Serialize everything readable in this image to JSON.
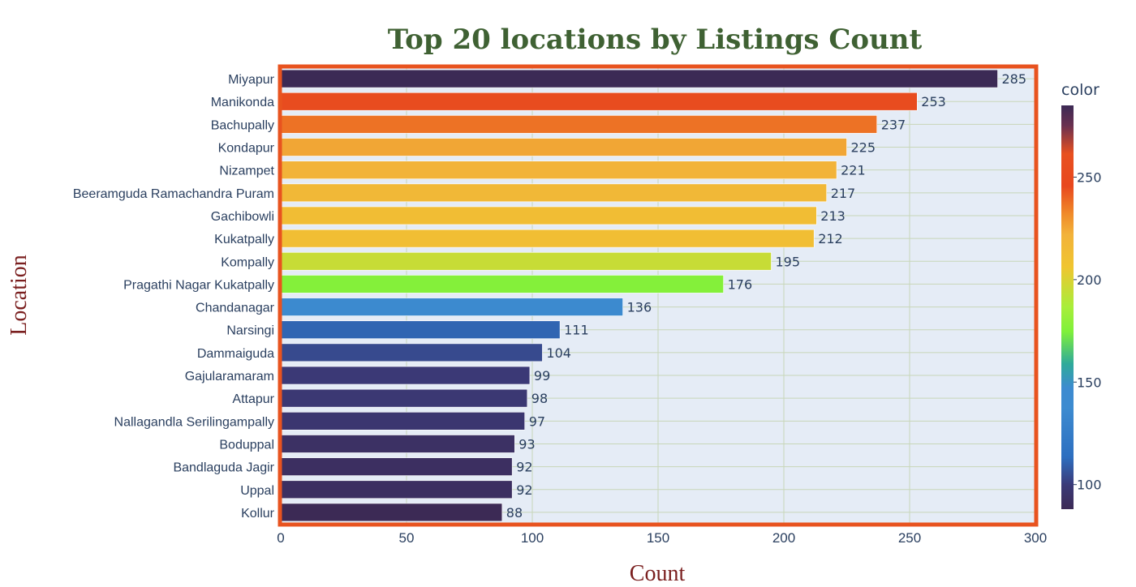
{
  "chart_data": {
    "type": "bar",
    "orientation": "horizontal",
    "title": "Top 20 locations by Listings Count",
    "xlabel": "Count",
    "ylabel": "Location",
    "xlim": [
      0,
      300
    ],
    "xticks": [
      0,
      50,
      100,
      150,
      200,
      250,
      300
    ],
    "grid": true,
    "categories": [
      "Miyapur",
      "Manikonda",
      "Bachupally",
      "Kondapur",
      "Nizampet",
      "Beeramguda Ramachandra Puram",
      "Gachibowli",
      "Kukatpally",
      "Kompally",
      "Pragathi Nagar Kukatpally",
      "Chandanagar",
      "Narsingi",
      "Dammaiguda",
      "Gajularamaram",
      "Attapur",
      "Nallagandla Serilingampally",
      "Boduppal",
      "Bandlaguda Jagir",
      "Uppal",
      "Kollur"
    ],
    "values": [
      285,
      253,
      237,
      225,
      221,
      217,
      213,
      212,
      195,
      176,
      136,
      111,
      104,
      99,
      98,
      97,
      93,
      92,
      92,
      88
    ],
    "data_labels": [
      "285",
      "253",
      "237",
      "225",
      "221",
      "217",
      "213",
      "212",
      "195",
      "176",
      "136",
      "111",
      "104",
      "99",
      "98",
      "97",
      "93",
      "92",
      "92",
      "88"
    ],
    "colorbar": {
      "title": "color",
      "ticks": [
        100,
        150,
        200,
        250
      ],
      "range": [
        88,
        285
      ],
      "colorscale": [
        [
          0.0,
          "#3c2a55"
        ],
        [
          0.06,
          "#3b3a78"
        ],
        [
          0.13,
          "#2d6fc0"
        ],
        [
          0.25,
          "#3d8bd0"
        ],
        [
          0.3,
          "#3d8bd0"
        ],
        [
          0.36,
          "#2faa9a"
        ],
        [
          0.44,
          "#7ff03a"
        ],
        [
          0.5,
          "#a8ee3a"
        ],
        [
          0.6,
          "#f0c530"
        ],
        [
          0.68,
          "#f2b23a"
        ],
        [
          0.73,
          "#f08c2a"
        ],
        [
          0.8,
          "#e8481e"
        ],
        [
          0.88,
          "#e85020"
        ],
        [
          0.95,
          "#6a3050"
        ],
        [
          1.0,
          "#3c2a55"
        ]
      ]
    },
    "colors": {
      "plot_bg": "#e5ecf6",
      "frame": "#e8531f",
      "grid": "#c8d6b8"
    }
  }
}
